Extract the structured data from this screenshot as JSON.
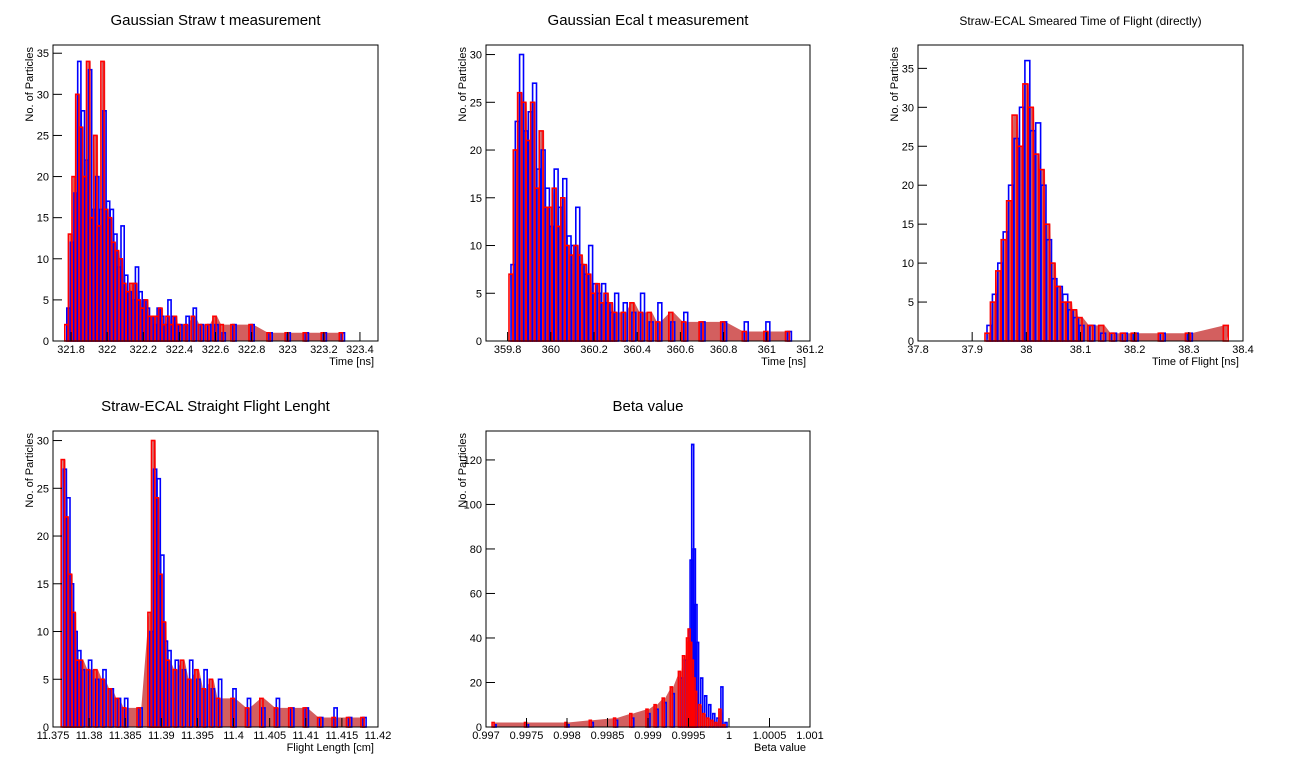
{
  "chart_data": [
    {
      "type": "bar",
      "title": "Gaussian Straw t measurement",
      "xlabel": "Time [ns]",
      "ylabel": "No. of Particles",
      "xlim": [
        321.7,
        323.5
      ],
      "ylim": [
        0,
        36
      ],
      "xticks": [
        321.8,
        322,
        322.2,
        322.4,
        322.6,
        322.8,
        323,
        323.2,
        323.4
      ],
      "xtick_labels": [
        "321.8",
        "322",
        "322.2",
        "322.4",
        "322.6",
        "322.8",
        "323",
        "323.2",
        "323.4"
      ],
      "yticks": [
        0,
        5,
        10,
        15,
        20,
        25,
        30,
        35
      ],
      "series": [
        {
          "color": "#0000ff",
          "x": [
            321.78,
            321.8,
            321.82,
            321.84,
            321.86,
            321.88,
            321.9,
            321.92,
            321.94,
            321.96,
            321.98,
            322.0,
            322.02,
            322.04,
            322.06,
            322.08,
            322.1,
            322.12,
            322.14,
            322.16,
            322.18,
            322.2,
            322.22,
            322.24,
            322.26,
            322.28,
            322.3,
            322.32,
            322.34,
            322.36,
            322.38,
            322.4,
            322.44,
            322.48,
            322.52,
            322.56,
            322.6,
            322.64,
            322.7,
            322.8,
            322.9,
            323.0,
            323.1,
            323.2,
            323.3
          ],
          "values": [
            4,
            12,
            18,
            34,
            28,
            22,
            33,
            16,
            20,
            16,
            28,
            17,
            16,
            13,
            9,
            14,
            8,
            6,
            5,
            9,
            6,
            5,
            4,
            3,
            2,
            4,
            3,
            2,
            5,
            3,
            2,
            2,
            3,
            4,
            2,
            2,
            2,
            1,
            2,
            2,
            1,
            1,
            1,
            1,
            1
          ]
        },
        {
          "color": "#ff0000",
          "x": [
            321.78,
            321.8,
            321.82,
            321.84,
            321.86,
            321.88,
            321.9,
            321.92,
            321.94,
            321.96,
            321.98,
            322.0,
            322.02,
            322.04,
            322.06,
            322.08,
            322.1,
            322.12,
            322.14,
            322.16,
            322.18,
            322.2,
            322.22,
            322.24,
            322.26,
            322.28,
            322.3,
            322.32,
            322.34,
            322.36,
            322.38,
            322.4,
            322.44,
            322.48,
            322.52,
            322.56,
            322.6,
            322.64,
            322.7,
            322.8,
            322.9,
            323.0,
            323.1,
            323.2,
            323.3
          ],
          "values": [
            2,
            13,
            20,
            30,
            26,
            20,
            34,
            15,
            25,
            14,
            34,
            16,
            15,
            12,
            11,
            10,
            7,
            6,
            7,
            7,
            5,
            4,
            5,
            3,
            3,
            3,
            4,
            2,
            3,
            2,
            3,
            2,
            2,
            3,
            2,
            2,
            3,
            2,
            2,
            2,
            1,
            1,
            1,
            1,
            1
          ]
        }
      ]
    },
    {
      "type": "bar",
      "title": "Gaussian Ecal t measurement",
      "xlabel": "Time [ns]",
      "ylabel": "No. of Particles",
      "xlim": [
        359.7,
        361.2
      ],
      "ylim": [
        0,
        31
      ],
      "xticks": [
        359.8,
        360,
        360.2,
        360.4,
        360.6,
        360.8,
        361,
        361.2
      ],
      "xtick_labels": [
        "359.8",
        "360",
        "360.2",
        "360.4",
        "360.6",
        "360.8",
        "361",
        "361.2"
      ],
      "yticks": [
        0,
        5,
        10,
        15,
        20,
        25,
        30
      ],
      "series": [
        {
          "color": "#0000ff",
          "x": [
            359.82,
            359.84,
            359.86,
            359.88,
            359.9,
            359.92,
            359.94,
            359.96,
            359.98,
            360.0,
            360.02,
            360.04,
            360.06,
            360.08,
            360.1,
            360.12,
            360.14,
            360.16,
            360.18,
            360.2,
            360.22,
            360.24,
            360.26,
            360.28,
            360.3,
            360.34,
            360.38,
            360.42,
            360.46,
            360.5,
            360.56,
            360.62,
            360.7,
            360.8,
            360.9,
            361.0,
            361.1
          ],
          "values": [
            8,
            23,
            30,
            22,
            24,
            27,
            18,
            20,
            16,
            12,
            18,
            14,
            17,
            11,
            10,
            14,
            8,
            7,
            10,
            6,
            5,
            6,
            4,
            3,
            5,
            4,
            3,
            5,
            2,
            4,
            2,
            3,
            2,
            2,
            2,
            2,
            1
          ]
        },
        {
          "color": "#ff0000",
          "x": [
            359.82,
            359.84,
            359.86,
            359.88,
            359.9,
            359.92,
            359.94,
            359.96,
            359.98,
            360.0,
            360.02,
            360.04,
            360.06,
            360.08,
            360.1,
            360.12,
            360.14,
            360.16,
            360.18,
            360.2,
            360.22,
            360.24,
            360.26,
            360.28,
            360.3,
            360.34,
            360.38,
            360.42,
            360.46,
            360.5,
            360.56,
            360.62,
            360.7,
            360.8,
            360.9,
            361.0,
            361.1
          ],
          "values": [
            7,
            20,
            26,
            25,
            21,
            25,
            16,
            22,
            14,
            14,
            16,
            12,
            15,
            10,
            9,
            10,
            9,
            8,
            7,
            5,
            6,
            4,
            5,
            4,
            3,
            3,
            4,
            3,
            3,
            2,
            3,
            2,
            2,
            2,
            1,
            1,
            1
          ]
        }
      ]
    },
    {
      "type": "bar",
      "title": "Straw-ECAL Smeared Time of Flight (directly)",
      "xlabel": "Time of Flight [ns]",
      "ylabel": "No. of Particles",
      "xlim": [
        37.8,
        38.4
      ],
      "ylim": [
        0,
        38
      ],
      "xticks": [
        37.8,
        37.9,
        38,
        38.1,
        38.2,
        38.3,
        38.4
      ],
      "xtick_labels": [
        "37.8",
        "37.9",
        "38",
        "38.1",
        "38.2",
        "38.3",
        "38.4"
      ],
      "yticks": [
        0,
        5,
        10,
        15,
        20,
        25,
        30,
        35
      ],
      "series": [
        {
          "color": "#0000ff",
          "x": [
            37.93,
            37.94,
            37.95,
            37.96,
            37.97,
            37.98,
            37.99,
            38.0,
            38.01,
            38.02,
            38.03,
            38.04,
            38.05,
            38.06,
            38.07,
            38.08,
            38.09,
            38.1,
            38.12,
            38.14,
            38.16,
            38.18,
            38.2,
            38.25,
            38.3
          ],
          "values": [
            2,
            6,
            10,
            14,
            20,
            26,
            30,
            36,
            27,
            28,
            20,
            13,
            8,
            7,
            6,
            4,
            3,
            2,
            2,
            1,
            1,
            1,
            1,
            1,
            1
          ]
        },
        {
          "color": "#ff0000",
          "x": [
            37.93,
            37.94,
            37.95,
            37.96,
            37.97,
            37.98,
            37.99,
            38.0,
            38.01,
            38.02,
            38.03,
            38.04,
            38.05,
            38.06,
            38.07,
            38.08,
            38.09,
            38.1,
            38.12,
            38.14,
            38.16,
            38.18,
            38.2,
            38.25,
            38.3,
            38.37
          ],
          "values": [
            1,
            5,
            9,
            13,
            18,
            29,
            25,
            33,
            30,
            24,
            22,
            15,
            10,
            7,
            5,
            5,
            4,
            3,
            2,
            2,
            1,
            1,
            1,
            1,
            1,
            2
          ]
        }
      ]
    },
    {
      "type": "bar",
      "title": "Straw-ECAL Straight Flight Lenght",
      "xlabel": "Flight Length [cm]",
      "ylabel": "No. of Particles",
      "xlim": [
        11.375,
        11.42
      ],
      "ylim": [
        0,
        31
      ],
      "xticks": [
        11.375,
        11.38,
        11.385,
        11.39,
        11.395,
        11.4,
        11.405,
        11.41,
        11.415,
        11.42
      ],
      "xtick_labels": [
        "11.375",
        "11.38",
        "11.385",
        "11.39",
        "11.395",
        "11.4",
        "11.405",
        "11.41",
        "11.415",
        "11.42"
      ],
      "yticks": [
        0,
        5,
        10,
        15,
        20,
        25,
        30
      ],
      "series": [
        {
          "color": "#0000ff",
          "x": [
            11.3765,
            11.377,
            11.3775,
            11.378,
            11.3785,
            11.379,
            11.38,
            11.381,
            11.382,
            11.383,
            11.384,
            11.385,
            11.387,
            11.3885,
            11.389,
            11.3895,
            11.39,
            11.3905,
            11.391,
            11.392,
            11.393,
            11.394,
            11.395,
            11.396,
            11.397,
            11.398,
            11.4,
            11.402,
            11.404,
            11.406,
            11.408,
            11.41,
            11.412,
            11.414,
            11.416,
            11.418
          ],
          "values": [
            27,
            24,
            15,
            10,
            8,
            6,
            7,
            5,
            6,
            4,
            3,
            3,
            2,
            10,
            27,
            26,
            18,
            9,
            8,
            7,
            6,
            7,
            5,
            6,
            4,
            5,
            4,
            3,
            2,
            3,
            2,
            2,
            1,
            2,
            1,
            1
          ]
        },
        {
          "color": "#ff0000",
          "x": [
            11.3765,
            11.377,
            11.3775,
            11.378,
            11.3785,
            11.379,
            11.38,
            11.381,
            11.382,
            11.383,
            11.384,
            11.385,
            11.387,
            11.3885,
            11.389,
            11.3895,
            11.39,
            11.3905,
            11.391,
            11.392,
            11.393,
            11.394,
            11.395,
            11.396,
            11.397,
            11.398,
            11.4,
            11.402,
            11.404,
            11.406,
            11.408,
            11.41,
            11.412,
            11.414,
            11.416,
            11.418
          ],
          "values": [
            28,
            22,
            16,
            12,
            7,
            7,
            6,
            6,
            5,
            4,
            3,
            2,
            2,
            12,
            30,
            24,
            16,
            11,
            7,
            6,
            7,
            5,
            6,
            4,
            5,
            3,
            3,
            2,
            3,
            2,
            2,
            2,
            1,
            1,
            1,
            1
          ]
        }
      ]
    },
    {
      "type": "bar",
      "title": "Beta value",
      "xlabel": "Beta value",
      "ylabel": "No. of Particles",
      "xlim": [
        0.997,
        1.001
      ],
      "ylim": [
        0,
        133
      ],
      "xticks": [
        0.997,
        0.9975,
        0.998,
        0.9985,
        0.999,
        0.9995,
        1,
        1.0005,
        1.001
      ],
      "xtick_labels": [
        "0.997",
        "0.9975",
        "0.998",
        "0.9985",
        "0.999",
        "0.9995",
        "1",
        "1.0005",
        "1.001"
      ],
      "yticks": [
        0,
        20,
        40,
        60,
        80,
        100,
        120
      ],
      "series": [
        {
          "color": "#0000ff",
          "x": [
            0.9971,
            0.9975,
            0.998,
            0.9983,
            0.9986,
            0.9988,
            0.999,
            0.9991,
            0.9992,
            0.9993,
            0.9994,
            0.99945,
            0.9995,
            0.99952,
            0.99954,
            0.99956,
            0.99958,
            0.9996,
            0.99965,
            0.9997,
            0.99975,
            0.9998,
            0.99985,
            0.9999,
            0.99995
          ],
          "values": [
            1,
            1,
            1,
            2,
            3,
            4,
            6,
            8,
            11,
            15,
            22,
            30,
            44,
            75,
            127,
            80,
            55,
            38,
            22,
            14,
            10,
            6,
            4,
            18,
            2
          ]
        },
        {
          "color": "#ff0000",
          "x": [
            0.9971,
            0.9975,
            0.998,
            0.9983,
            0.9986,
            0.9988,
            0.999,
            0.9991,
            0.9992,
            0.9993,
            0.9994,
            0.99945,
            0.9995,
            0.99952,
            0.99954,
            0.99956,
            0.99958,
            0.9996,
            0.99965,
            0.9997,
            0.99975,
            0.9998,
            0.99985,
            0.9999,
            0.99995
          ],
          "values": [
            2,
            2,
            2,
            3,
            4,
            6,
            8,
            10,
            13,
            18,
            25,
            32,
            40,
            44,
            38,
            30,
            22,
            16,
            10,
            6,
            4,
            3,
            2,
            8,
            1
          ]
        }
      ]
    }
  ]
}
